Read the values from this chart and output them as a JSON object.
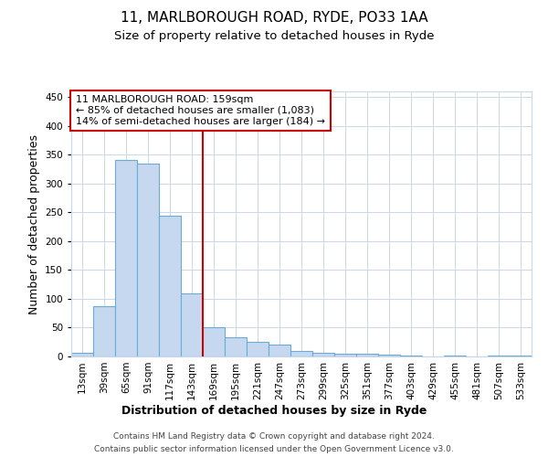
{
  "title1": "11, MARLBOROUGH ROAD, RYDE, PO33 1AA",
  "title2": "Size of property relative to detached houses in Ryde",
  "xlabel": "Distribution of detached houses by size in Ryde",
  "ylabel": "Number of detached properties",
  "bins": [
    "13sqm",
    "39sqm",
    "65sqm",
    "91sqm",
    "117sqm",
    "143sqm",
    "169sqm",
    "195sqm",
    "221sqm",
    "247sqm",
    "273sqm",
    "299sqm",
    "325sqm",
    "351sqm",
    "377sqm",
    "403sqm",
    "429sqm",
    "455sqm",
    "481sqm",
    "507sqm",
    "533sqm"
  ],
  "values": [
    7,
    88,
    341,
    334,
    245,
    110,
    50,
    33,
    25,
    21,
    10,
    6,
    5,
    5,
    3,
    2,
    0,
    1,
    0,
    2,
    2
  ],
  "bar_color": "#c5d8f0",
  "bar_edge_color": "#6aaad4",
  "vline_x": 6.0,
  "vline_color": "#cc0000",
  "annotation_text": "11 MARLBOROUGH ROAD: 159sqm\n← 85% of detached houses are smaller (1,083)\n14% of semi-detached houses are larger (184) →",
  "annotation_box_color": "white",
  "annotation_box_edge_color": "#cc0000",
  "ylim": [
    0,
    460
  ],
  "yticks": [
    0,
    50,
    100,
    150,
    200,
    250,
    300,
    350,
    400,
    450
  ],
  "footer1": "Contains HM Land Registry data © Crown copyright and database right 2024.",
  "footer2": "Contains public sector information licensed under the Open Government Licence v3.0.",
  "background_color": "#ffffff",
  "plot_background": "#ffffff",
  "grid_color": "#c8d8e8",
  "title1_fontsize": 11,
  "title2_fontsize": 9.5,
  "annotation_fontsize": 8,
  "axis_label_fontsize": 9,
  "tick_fontsize": 7.5,
  "footer_fontsize": 6.5
}
